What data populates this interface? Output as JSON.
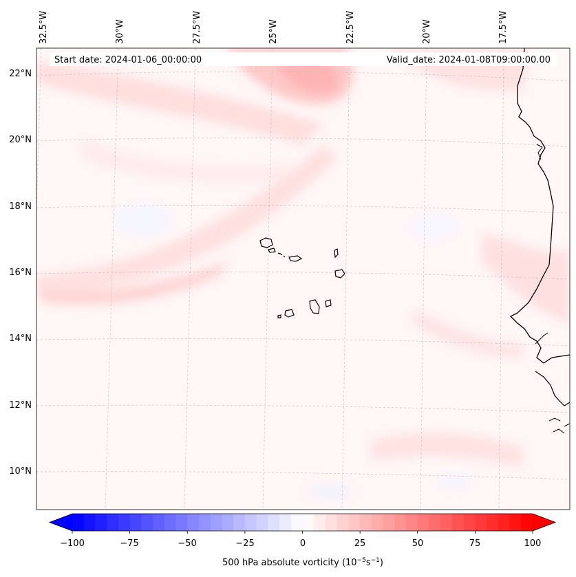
{
  "header": {
    "start_date": "Start date: 2024-01-06_00:00:00",
    "valid_date": "Valid_date: 2024-01-08T09:00:00.00"
  },
  "longitude_labels": [
    "32.5°W",
    "30°W",
    "27.5°W",
    "25°W",
    "22.5°W",
    "20°W",
    "17.5°W"
  ],
  "latitude_labels": [
    "22°N",
    "20°N",
    "18°N",
    "16°N",
    "14°N",
    "12°N",
    "10°N"
  ],
  "colorbar": {
    "ticks": [
      "−100",
      "−75",
      "−50",
      "−25",
      "0",
      "25",
      "50",
      "75",
      "100"
    ],
    "label_main": "500 hPa absolute vorticity (10",
    "label_exp1": "−5",
    "label_mid": "s",
    "label_exp2": "−1",
    "label_end": ")",
    "min_color": "#0000ff",
    "mid_color": "#ffffff",
    "max_color": "#ff0000"
  },
  "colors": {
    "land_outline": "#000000",
    "grid": "#bbbbbb"
  }
}
